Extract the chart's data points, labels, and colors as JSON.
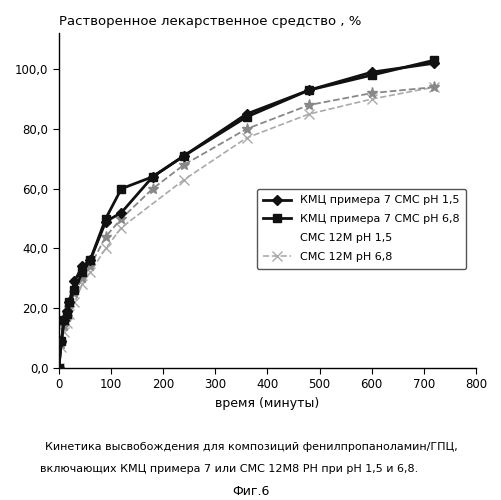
{
  "title": "Растворенное лекарственное средство , %",
  "xlabel": "время (минуты)",
  "xlim": [
    0,
    800
  ],
  "ylim": [
    0.0,
    112.0
  ],
  "xticks": [
    0,
    100,
    200,
    300,
    400,
    500,
    600,
    700,
    800
  ],
  "yticks": [
    0.0,
    20.0,
    40.0,
    60.0,
    80.0,
    100.0
  ],
  "series": [
    {
      "label": "КМЦ примера 7 СМС pH 1,5",
      "x": [
        0,
        5,
        10,
        15,
        20,
        30,
        45,
        60,
        90,
        120,
        180,
        240,
        360,
        480,
        600,
        720
      ],
      "y": [
        0,
        9,
        16,
        19,
        22,
        29,
        34,
        36,
        49,
        52,
        64,
        71,
        85,
        93,
        99,
        102
      ],
      "color": "#111111",
      "linestyle": "-",
      "marker": "D",
      "markersize": 5,
      "linewidth": 2.0,
      "markerfacecolor": "#111111"
    },
    {
      "label": "КМЦ примера 7 СМС pH 6,8",
      "x": [
        0,
        5,
        10,
        15,
        20,
        30,
        45,
        60,
        90,
        120,
        180,
        240,
        360,
        480,
        600,
        720
      ],
      "y": [
        0,
        9,
        16,
        18,
        22,
        26,
        32,
        36,
        50,
        60,
        64,
        71,
        84,
        93,
        98,
        103
      ],
      "color": "#111111",
      "linestyle": "-",
      "marker": "s",
      "markersize": 6,
      "linewidth": 2.0,
      "markerfacecolor": "#111111"
    },
    {
      "label": "СМС 12M pH 1,5",
      "x": [
        0,
        5,
        10,
        15,
        20,
        30,
        45,
        60,
        90,
        120,
        180,
        240,
        360,
        480,
        600,
        720
      ],
      "y": [
        0,
        8,
        14,
        17,
        20,
        25,
        30,
        34,
        44,
        50,
        60,
        68,
        80,
        88,
        92,
        94
      ],
      "color": "#888888",
      "linestyle": "--",
      "marker": "*",
      "markersize": 8,
      "linewidth": 1.3,
      "markerfacecolor": "#888888"
    },
    {
      "label": "СМС 12M pH 6,8",
      "x": [
        0,
        5,
        10,
        15,
        20,
        30,
        45,
        60,
        90,
        120,
        240,
        360,
        480,
        600,
        720
      ],
      "y": [
        0,
        7,
        12,
        15,
        18,
        22,
        28,
        32,
        40,
        47,
        63,
        77,
        85,
        90,
        94
      ],
      "color": "#aaaaaa",
      "linestyle": "--",
      "marker": "x",
      "markersize": 7,
      "linewidth": 1.2,
      "markerfacecolor": "#aaaaaa"
    }
  ],
  "legend_labels": [
    "КМЦ примера 7 СМС pH 1,5",
    "КМЦ примера 7 СМС pH 6,8",
    "СМС 12M pH 1,5",
    "СМС 12M pH 6,8"
  ],
  "caption_line1": "Кинетика высвобождения для композиций фенилпропаноламин/ГПЦ,",
  "caption_line2": "включающих КМЦ примера 7 или СМС 12М8 РН при рН 1,5 и 6,8.",
  "caption_fig": "Фиг.6",
  "background_color": "#ffffff"
}
